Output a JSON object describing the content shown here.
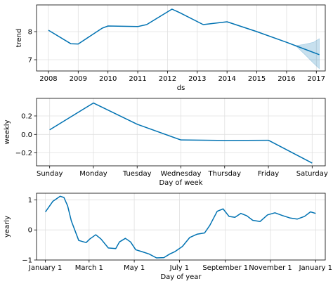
{
  "colors": {
    "line": "#0072B2",
    "band": "#0072B2",
    "grid": "#e0e0e0",
    "frame": "#000000"
  },
  "chart_data": [
    {
      "type": "line",
      "title": "",
      "xlabel": "ds",
      "ylabel": "trend",
      "xlim": [
        2007.6,
        2017.3
      ],
      "ylim": [
        6.6,
        8.95
      ],
      "grid": true,
      "x_ticks": [
        2008,
        2009,
        2010,
        2011,
        2012,
        2013,
        2014,
        2015,
        2016,
        2017
      ],
      "x_tick_labels": [
        "2008",
        "2009",
        "2010",
        "2011",
        "2012",
        "2013",
        "2014",
        "2015",
        "2016",
        "2017"
      ],
      "y_ticks": [
        7,
        8
      ],
      "y_tick_labels": [
        "7",
        "8"
      ],
      "series": [
        {
          "x": [
            2008.0,
            2008.75,
            2009.0,
            2009.8,
            2010.0,
            2011.0,
            2011.3,
            2012.15,
            2012.4,
            2013.2,
            2014.0,
            2015.0,
            2016.0,
            2016.3,
            2017.1
          ],
          "y": [
            8.05,
            7.57,
            7.56,
            8.12,
            8.2,
            8.18,
            8.25,
            8.8,
            8.68,
            8.25,
            8.35,
            8.0,
            7.62,
            7.5,
            7.18
          ]
        }
      ],
      "uncertainty_band": {
        "x": [
          2016.3,
          2016.6,
          2016.9,
          2017.1
        ],
        "upper": [
          7.5,
          7.55,
          7.62,
          7.75
        ],
        "lower": [
          7.5,
          7.2,
          6.88,
          6.68
        ]
      }
    },
    {
      "type": "line",
      "title": "",
      "xlabel": "Day of week",
      "ylabel": "weekly",
      "ylim": [
        -0.34,
        0.39
      ],
      "grid": true,
      "categories": [
        "Sunday",
        "Monday",
        "Tuesday",
        "Wednesday",
        "Thursday",
        "Friday",
        "Saturday"
      ],
      "y_ticks": [
        -0.2,
        0.0,
        0.2
      ],
      "y_tick_labels": [
        "−0.2",
        "0.0",
        "0.2"
      ],
      "series": [
        {
          "values": [
            0.05,
            0.34,
            0.11,
            -0.06,
            -0.065,
            -0.063,
            -0.31
          ]
        }
      ]
    },
    {
      "type": "line",
      "title": "",
      "xlabel": "Day of year",
      "ylabel": "yearly",
      "xlim": [
        -12,
        378
      ],
      "ylim": [
        -1.0,
        1.22
      ],
      "grid": true,
      "x_ticks": [
        0,
        59,
        120,
        181,
        243,
        304,
        365
      ],
      "x_tick_labels": [
        "January 1",
        "March 1",
        "May 1",
        "July 1",
        "September 1",
        "November 1",
        "January 1"
      ],
      "y_ticks": [
        -1,
        0,
        1
      ],
      "y_tick_labels": [
        "−1",
        "0",
        "1"
      ],
      "series": [
        {
          "x": [
            0,
            10,
            20,
            25,
            30,
            35,
            45,
            55,
            60,
            68,
            75,
            85,
            95,
            100,
            108,
            115,
            122,
            130,
            140,
            150,
            160,
            168,
            175,
            185,
            195,
            205,
            215,
            222,
            232,
            240,
            248,
            256,
            264,
            272,
            280,
            290,
            300,
            310,
            320,
            330,
            340,
            350,
            358,
            365
          ],
          "y": [
            0.6,
            0.95,
            1.12,
            1.08,
            0.8,
            0.3,
            -0.35,
            -0.42,
            -0.3,
            -0.16,
            -0.3,
            -0.6,
            -0.62,
            -0.4,
            -0.28,
            -0.4,
            -0.66,
            -0.72,
            -0.8,
            -0.93,
            -0.92,
            -0.8,
            -0.72,
            -0.55,
            -0.25,
            -0.14,
            -0.1,
            0.15,
            0.62,
            0.7,
            0.45,
            0.42,
            0.55,
            0.47,
            0.32,
            0.28,
            0.5,
            0.57,
            0.48,
            0.4,
            0.36,
            0.45,
            0.6,
            0.55
          ]
        }
      ]
    }
  ]
}
